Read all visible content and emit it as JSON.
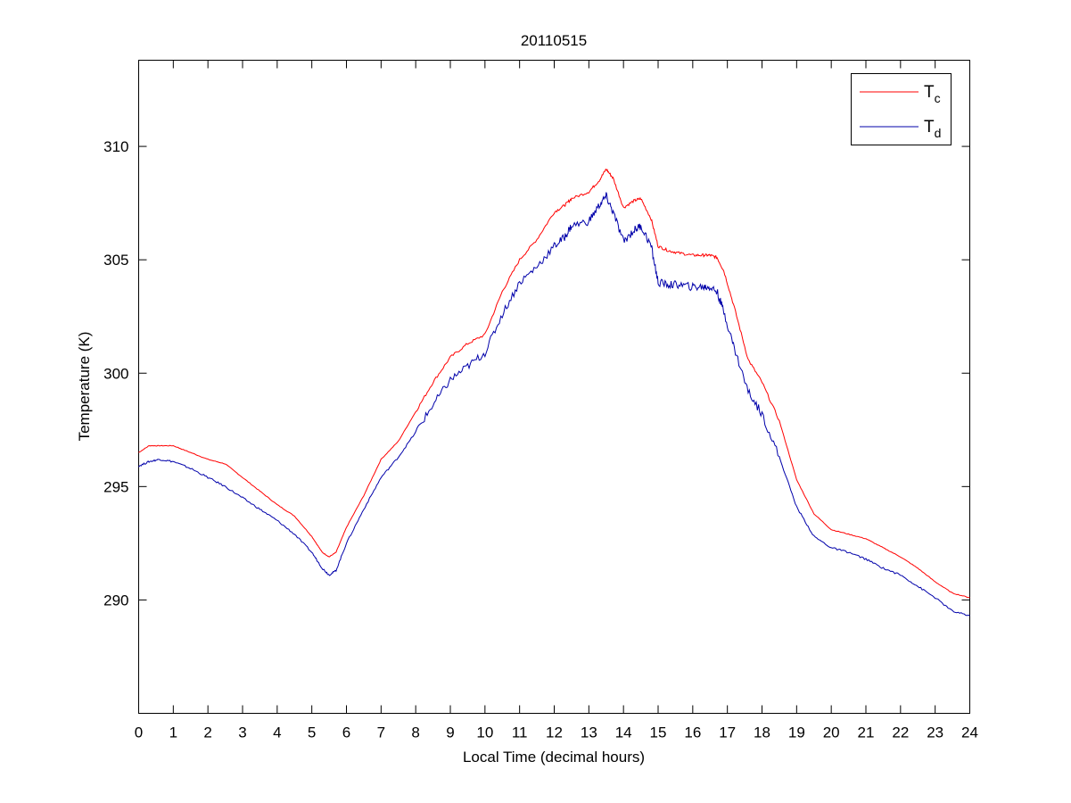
{
  "chart_data": {
    "type": "line",
    "title": "20110515",
    "xlabel": "Local Time (decimal hours)",
    "ylabel": "Temperature (K)",
    "xlim": [
      0,
      24
    ],
    "ylim": [
      285,
      313.8
    ],
    "xticks": [
      0,
      1,
      2,
      3,
      4,
      5,
      6,
      7,
      8,
      9,
      10,
      11,
      12,
      13,
      14,
      15,
      16,
      17,
      18,
      19,
      20,
      21,
      22,
      23,
      24
    ],
    "yticks": [
      290,
      295,
      300,
      305,
      310
    ],
    "grid": false,
    "legend_position": "top-right",
    "series": [
      {
        "name": "Tc",
        "name_main": "T",
        "name_sub": "c",
        "color": "#ff0000",
        "points": [
          [
            0,
            296.5
          ],
          [
            0.3,
            296.8
          ],
          [
            0.6,
            296.8
          ],
          [
            1.0,
            296.8
          ],
          [
            1.5,
            296.5
          ],
          [
            2.0,
            296.2
          ],
          [
            2.5,
            296.0
          ],
          [
            3.0,
            295.4
          ],
          [
            3.5,
            294.8
          ],
          [
            4.0,
            294.2
          ],
          [
            4.5,
            293.7
          ],
          [
            5.0,
            292.8
          ],
          [
            5.3,
            292.1
          ],
          [
            5.5,
            291.9
          ],
          [
            5.7,
            292.1
          ],
          [
            6.0,
            293.2
          ],
          [
            6.5,
            294.6
          ],
          [
            7.0,
            296.2
          ],
          [
            7.5,
            297.0
          ],
          [
            8.0,
            298.3
          ],
          [
            8.5,
            299.6
          ],
          [
            9.0,
            300.7
          ],
          [
            9.5,
            301.3
          ],
          [
            10.0,
            301.7
          ],
          [
            10.5,
            303.6
          ],
          [
            11.0,
            305.0
          ],
          [
            11.5,
            305.9
          ],
          [
            12.0,
            307.1
          ],
          [
            12.3,
            307.4
          ],
          [
            12.5,
            307.7
          ],
          [
            13.0,
            308.0
          ],
          [
            13.3,
            308.5
          ],
          [
            13.5,
            309.0
          ],
          [
            13.7,
            308.6
          ],
          [
            14.0,
            307.3
          ],
          [
            14.3,
            307.6
          ],
          [
            14.5,
            307.7
          ],
          [
            14.8,
            306.8
          ],
          [
            15.0,
            305.6
          ],
          [
            15.3,
            305.4
          ],
          [
            15.6,
            305.3
          ],
          [
            16.0,
            305.2
          ],
          [
            16.3,
            305.2
          ],
          [
            16.5,
            305.2
          ],
          [
            16.7,
            305.1
          ],
          [
            16.9,
            304.5
          ],
          [
            17.2,
            302.9
          ],
          [
            17.6,
            300.6
          ],
          [
            18.0,
            299.6
          ],
          [
            18.5,
            297.9
          ],
          [
            19.0,
            295.3
          ],
          [
            19.5,
            293.8
          ],
          [
            20.0,
            293.1
          ],
          [
            20.5,
            292.9
          ],
          [
            21.0,
            292.7
          ],
          [
            21.5,
            292.3
          ],
          [
            22.0,
            291.9
          ],
          [
            22.5,
            291.4
          ],
          [
            23.0,
            290.8
          ],
          [
            23.5,
            290.3
          ],
          [
            24.0,
            290.1
          ]
        ]
      },
      {
        "name": "Td",
        "name_main": "T",
        "name_sub": "d",
        "color": "#0000aa",
        "points": [
          [
            0,
            295.9
          ],
          [
            0.3,
            296.1
          ],
          [
            0.6,
            296.2
          ],
          [
            1.0,
            296.1
          ],
          [
            1.5,
            295.8
          ],
          [
            2.0,
            295.4
          ],
          [
            2.5,
            295.0
          ],
          [
            3.0,
            294.5
          ],
          [
            3.5,
            294.0
          ],
          [
            4.0,
            293.5
          ],
          [
            4.5,
            292.9
          ],
          [
            5.0,
            292.1
          ],
          [
            5.3,
            291.4
          ],
          [
            5.5,
            291.1
          ],
          [
            5.7,
            291.3
          ],
          [
            6.0,
            292.5
          ],
          [
            6.5,
            294.0
          ],
          [
            7.0,
            295.4
          ],
          [
            7.5,
            296.3
          ],
          [
            8.0,
            297.4
          ],
          [
            8.5,
            298.6
          ],
          [
            9.0,
            299.7
          ],
          [
            9.5,
            300.3
          ],
          [
            10.0,
            300.9
          ],
          [
            10.5,
            302.6
          ],
          [
            11.0,
            304.0
          ],
          [
            11.5,
            304.7
          ],
          [
            12.0,
            305.6
          ],
          [
            12.3,
            306.0
          ],
          [
            12.5,
            306.5
          ],
          [
            13.0,
            306.7
          ],
          [
            13.3,
            307.4
          ],
          [
            13.5,
            307.8
          ],
          [
            13.7,
            307.1
          ],
          [
            14.0,
            305.8
          ],
          [
            14.3,
            306.3
          ],
          [
            14.5,
            306.5
          ],
          [
            14.8,
            305.6
          ],
          [
            15.0,
            304.0
          ],
          [
            15.3,
            303.9
          ],
          [
            15.6,
            303.9
          ],
          [
            16.0,
            303.8
          ],
          [
            16.3,
            303.8
          ],
          [
            16.5,
            303.8
          ],
          [
            16.7,
            303.6
          ],
          [
            16.9,
            302.7
          ],
          [
            17.2,
            301.1
          ],
          [
            17.6,
            299.2
          ],
          [
            18.0,
            298.2
          ],
          [
            18.5,
            296.3
          ],
          [
            19.0,
            294.1
          ],
          [
            19.5,
            292.8
          ],
          [
            20.0,
            292.3
          ],
          [
            20.5,
            292.1
          ],
          [
            21.0,
            291.8
          ],
          [
            21.5,
            291.4
          ],
          [
            22.0,
            291.1
          ],
          [
            22.5,
            290.6
          ],
          [
            23.0,
            290.1
          ],
          [
            23.5,
            289.5
          ],
          [
            24.0,
            289.3
          ]
        ]
      }
    ]
  }
}
